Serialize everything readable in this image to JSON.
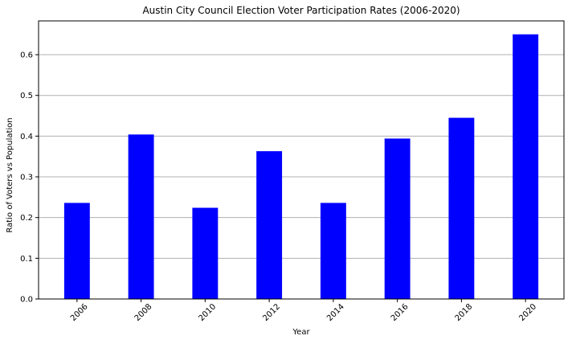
{
  "chart_data": {
    "type": "bar",
    "title": "Austin City Council Election Voter Participation Rates (2006-2020)",
    "xlabel": "Year",
    "ylabel": "Ratio of Voters vs Population",
    "categories": [
      "2006",
      "2008",
      "2010",
      "2012",
      "2014",
      "2016",
      "2018",
      "2020"
    ],
    "values": [
      0.236,
      0.404,
      0.224,
      0.363,
      0.236,
      0.394,
      0.445,
      0.65
    ],
    "ylim": [
      0,
      0.683
    ],
    "yticks": [
      0.0,
      0.1,
      0.2,
      0.3,
      0.4,
      0.5,
      0.6
    ],
    "ytick_labels": [
      "0.0",
      "0.1",
      "0.2",
      "0.3",
      "0.4",
      "0.5",
      "0.6"
    ],
    "grid": "y",
    "bar_color": "#0000ff",
    "grid_color": "#b0b0b0",
    "xtick_rotation": 45
  }
}
